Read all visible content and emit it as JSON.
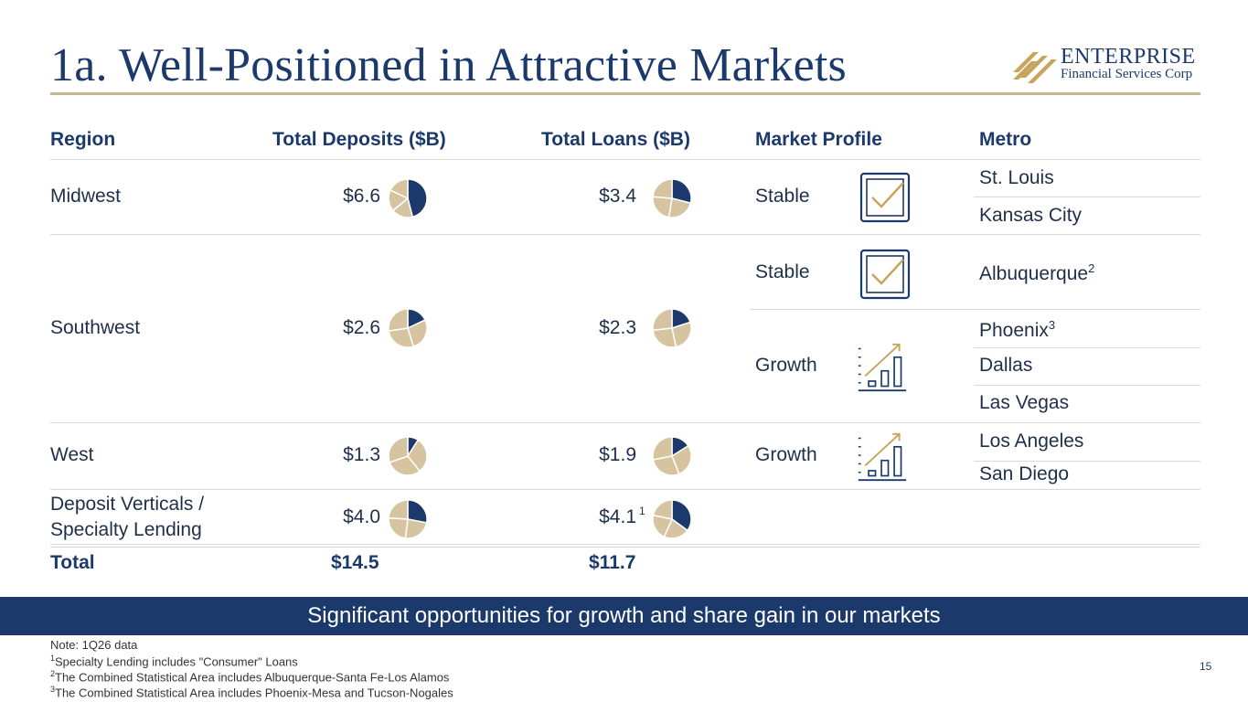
{
  "title": "1a. Well-Positioned in Attractive Markets",
  "logo": {
    "word": "ENTERPRISE",
    "sub": "Financial Services Corp"
  },
  "headers": {
    "region": "Region",
    "deposits": "Total Deposits ($B)",
    "loans": "Total Loans ($B)",
    "profile": "Market Profile",
    "metro": "Metro"
  },
  "rows": {
    "midwest": {
      "region": "Midwest",
      "deposits": "$6.6",
      "loans": "$3.4",
      "deposits_share": 0.46,
      "loans_share": 0.29
    },
    "southwest": {
      "region": "Southwest",
      "deposits": "$2.6",
      "loans": "$2.3",
      "deposits_share": 0.18,
      "loans_share": 0.2
    },
    "west": {
      "region": "West",
      "deposits": "$1.3",
      "loans": "$1.9",
      "deposits_share": 0.09,
      "loans_share": 0.16
    },
    "verticals": {
      "region_line1": "Deposit Verticals /",
      "region_line2": "Specialty Lending",
      "deposits": "$4.0",
      "loans": "$4.1",
      "loans_note": "1",
      "deposits_share": 0.28,
      "loans_share": 0.35
    }
  },
  "profiles": {
    "p1": "Stable",
    "p2": "Stable",
    "p3": "Growth",
    "p4": "Growth"
  },
  "metros": {
    "m1": "St. Louis",
    "m2": "Kansas City",
    "m3": "Albuquerque",
    "m3_note": "2",
    "m4": "Phoenix",
    "m4_note": "3",
    "m5": "Dallas",
    "m6": "Las Vegas",
    "m7": "Los Angeles",
    "m8": "San Diego"
  },
  "total": {
    "label": "Total",
    "deposits": "$14.5",
    "loans": "$11.7"
  },
  "banner": "Significant opportunities for growth and share gain in our markets",
  "notes": {
    "n0": "Note: 1Q26 data",
    "n1_sup": "1",
    "n1": "Specialty Lending includes \"Consumer\" Loans",
    "n2_sup": "2",
    "n2": "The Combined Statistical Area includes Albuquerque-Santa Fe-Los Alamos",
    "n3_sup": "3",
    "n3": "The Combined Statistical Area includes Phoenix-Mesa and Tucson-Nogales"
  },
  "page_number": "15",
  "colors": {
    "navy": "#1b3a6b",
    "tan": "#d6c4a1",
    "gold": "#c8a35a"
  },
  "icons": {
    "stable": "checkbox-check-icon",
    "growth": "bar-chart-growth-icon"
  }
}
